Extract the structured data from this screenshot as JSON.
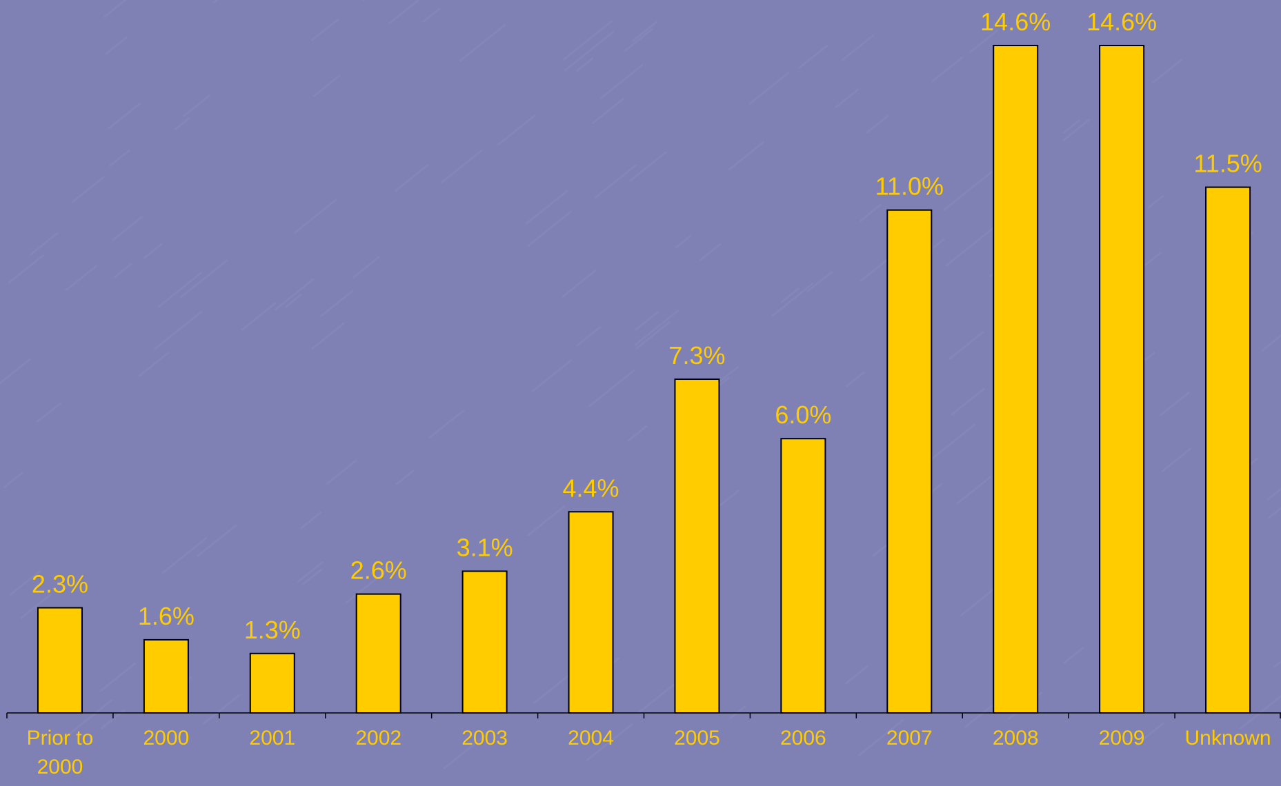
{
  "chart_data": {
    "type": "bar",
    "categories": [
      "Prior to 2000",
      "2000",
      "2001",
      "2002",
      "2003",
      "2004",
      "2005",
      "2006",
      "2007",
      "2008",
      "2009",
      "Unknown"
    ],
    "category_lines": [
      [
        "Prior to",
        "2000"
      ],
      [
        "2000"
      ],
      [
        "2001"
      ],
      [
        "2002"
      ],
      [
        "2003"
      ],
      [
        "2004"
      ],
      [
        "2005"
      ],
      [
        "2006"
      ],
      [
        "2007"
      ],
      [
        "2008"
      ],
      [
        "2009"
      ],
      [
        "Unknown"
      ]
    ],
    "values": [
      2.3,
      1.6,
      1.3,
      2.6,
      3.1,
      4.4,
      7.3,
      6.0,
      11.0,
      14.6,
      14.6,
      11.5
    ],
    "value_labels": [
      "2.3%",
      "1.6%",
      "1.3%",
      "2.6%",
      "3.1%",
      "4.4%",
      "7.3%",
      "6.0%",
      "11.0%",
      "14.6%",
      "14.6%",
      "11.5%"
    ],
    "ylim": [
      0,
      14.6
    ],
    "title": "",
    "xlabel": "",
    "ylabel": "",
    "grid": false,
    "legend": "none"
  },
  "colors": {
    "background": "#7f80b3",
    "bar_fill": "#ffcc00",
    "bar_stroke": "#000000",
    "label_text": "#ffcc00",
    "axis": "#000000"
  }
}
